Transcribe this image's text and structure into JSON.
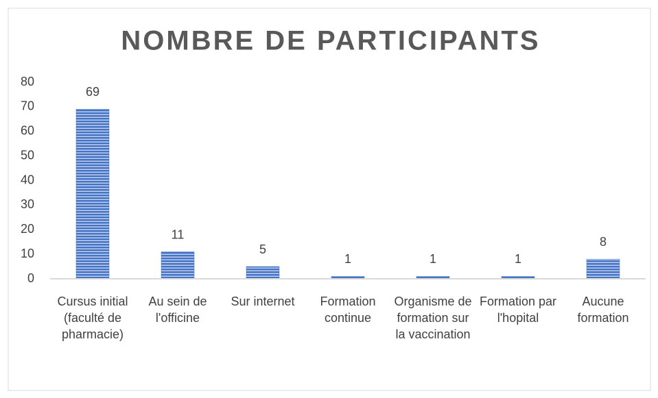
{
  "chart_data": {
    "type": "bar",
    "title": "NOMBRE DE PARTICIPANTS",
    "categories": [
      "Cursus initial (faculté de pharmacie)",
      "Au sein de l'officine",
      "Sur internet",
      "Formation continue",
      "Organisme de formation sur la vaccination",
      "Formation par l'hopital",
      "Aucune formation"
    ],
    "values": [
      69,
      11,
      5,
      1,
      1,
      1,
      8
    ],
    "color": "#4472c4",
    "ylim": [
      0,
      80
    ],
    "yticks": [
      0,
      10,
      20,
      30,
      40,
      50,
      60,
      70,
      80
    ],
    "grid": false
  }
}
